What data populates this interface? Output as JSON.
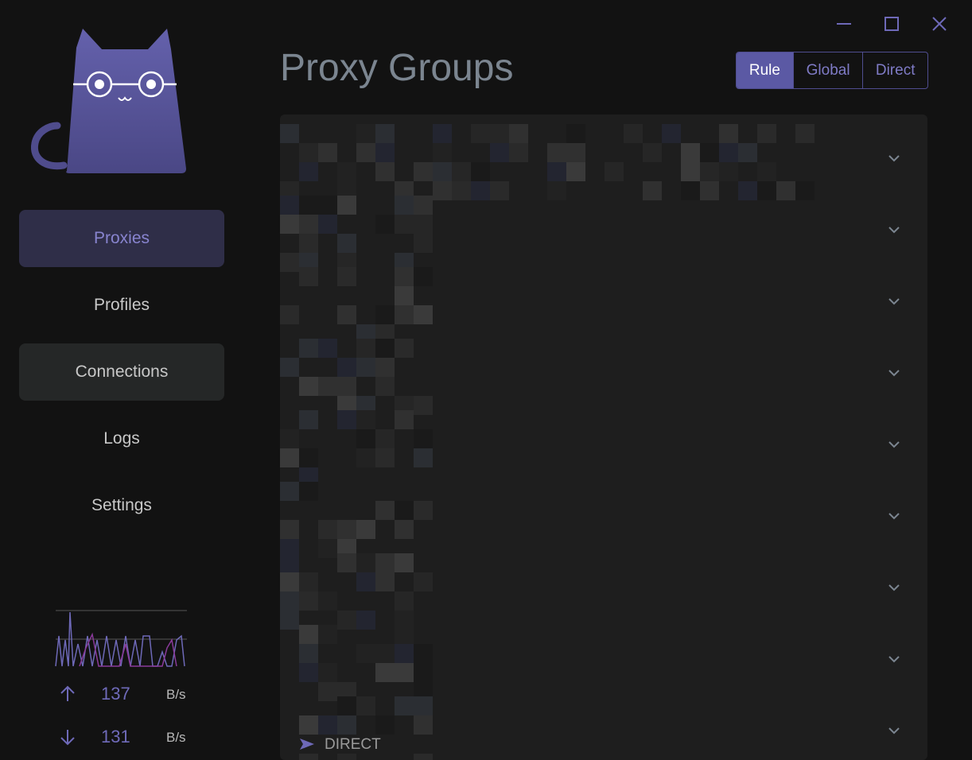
{
  "header": {
    "title": "Proxy Groups",
    "modes": [
      "Rule",
      "Global",
      "Direct"
    ]
  },
  "sidebar": {
    "nav": [
      "Proxies",
      "Profiles",
      "Connections",
      "Logs",
      "Settings"
    ],
    "traffic": {
      "upload": {
        "value": 137,
        "unit": "B/s"
      },
      "download": {
        "value": 131,
        "unit": "B/s"
      }
    }
  },
  "groups": {
    "current_proxy": "DIRECT"
  }
}
